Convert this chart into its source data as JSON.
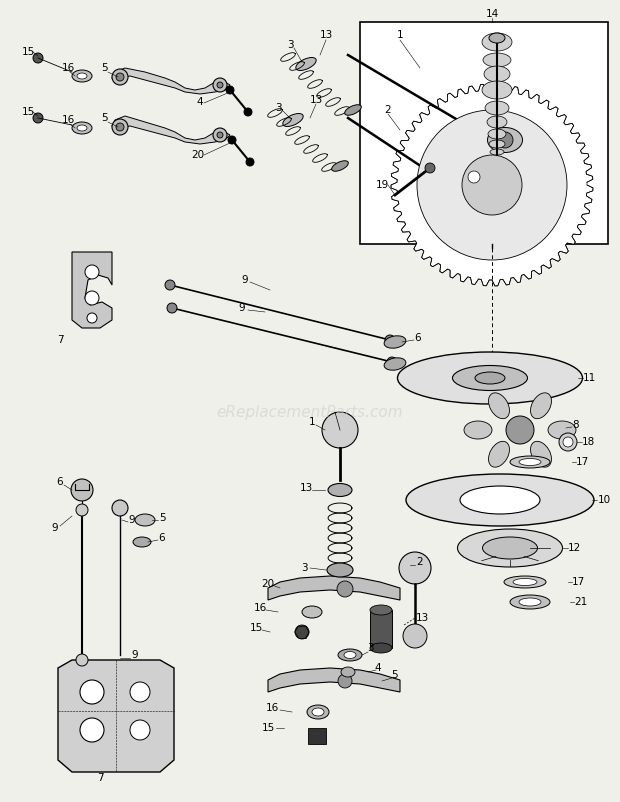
{
  "bg_color": "#f5f5f0",
  "watermark_text": "eReplacementParts.com",
  "fig_width": 6.2,
  "fig_height": 8.02,
  "dpi": 100
}
